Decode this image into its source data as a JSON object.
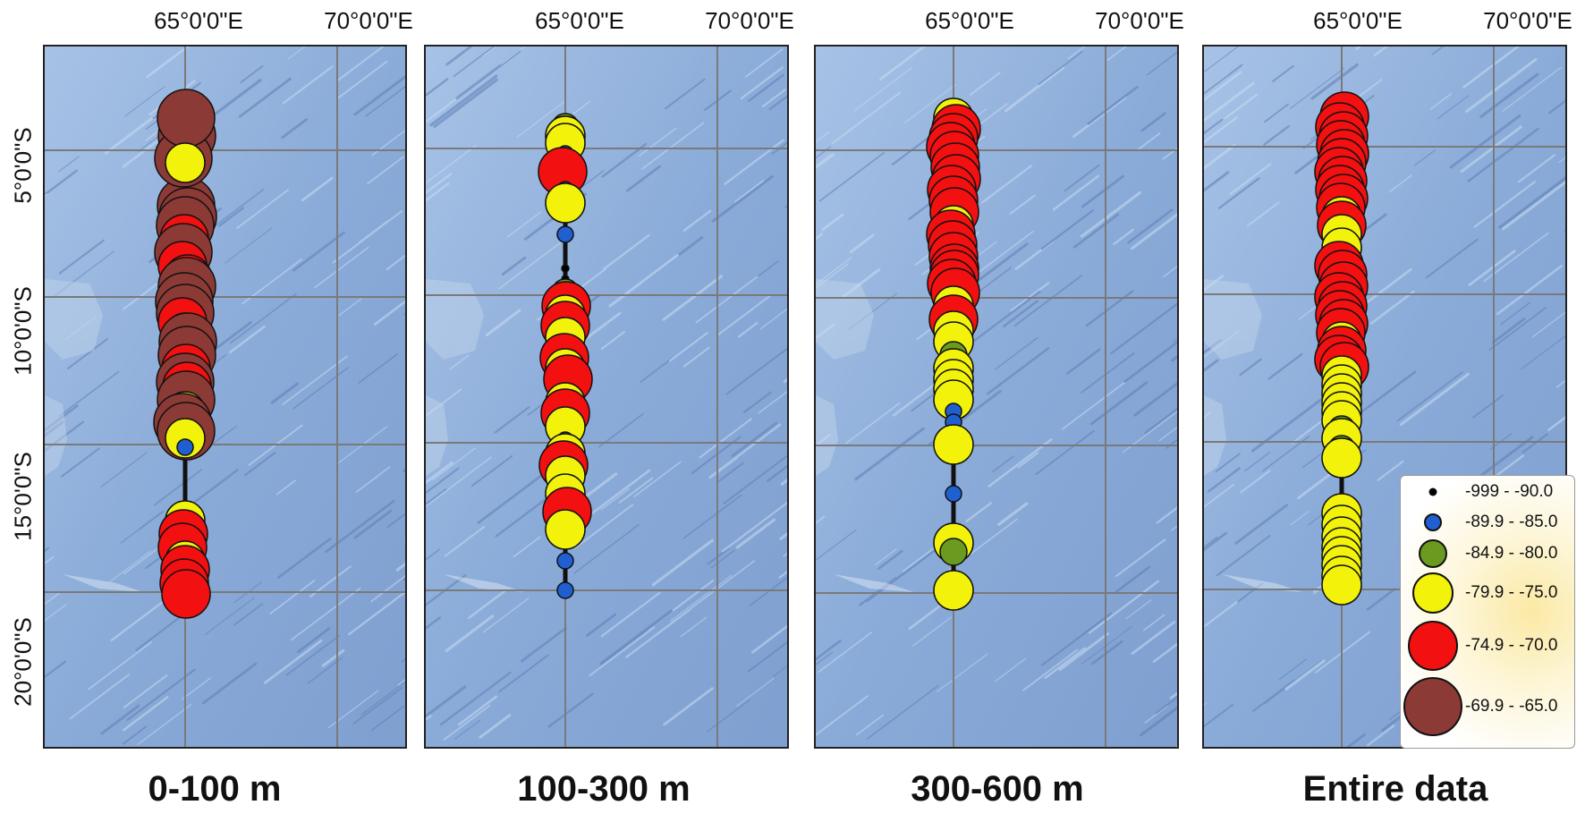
{
  "longitude_labels": [
    "65°0'0\"E",
    "70°0'0\"E"
  ],
  "latitude_labels": [
    "5°0'0\"S",
    "10°0'0\"S",
    "15°0'0\"S",
    "20°0'0\"S"
  ],
  "panels": [
    {
      "caption": "0-100 m"
    },
    {
      "caption": "100-300 m"
    },
    {
      "caption": "300-600 m"
    },
    {
      "caption": "Entire data"
    }
  ],
  "legend": {
    "items": [
      {
        "label": "-999 - -90.0",
        "color": "#000000"
      },
      {
        "label": "-89.9 - -85.0",
        "color": "#1f5fd0"
      },
      {
        "label": "-84.9 - -80.0",
        "color": "#6a9a1f"
      },
      {
        "label": "-79.9 - -75.0",
        "color": "#f2f20a"
      },
      {
        "label": "-74.9 - -70.0",
        "color": "#f21010"
      },
      {
        "label": "-69.9 - -65.0",
        "color": "#8b3a36"
      }
    ]
  },
  "colors": {
    "ocean": "#8fb0da",
    "grid": "#7a7a7a",
    "track": "#111111"
  }
}
